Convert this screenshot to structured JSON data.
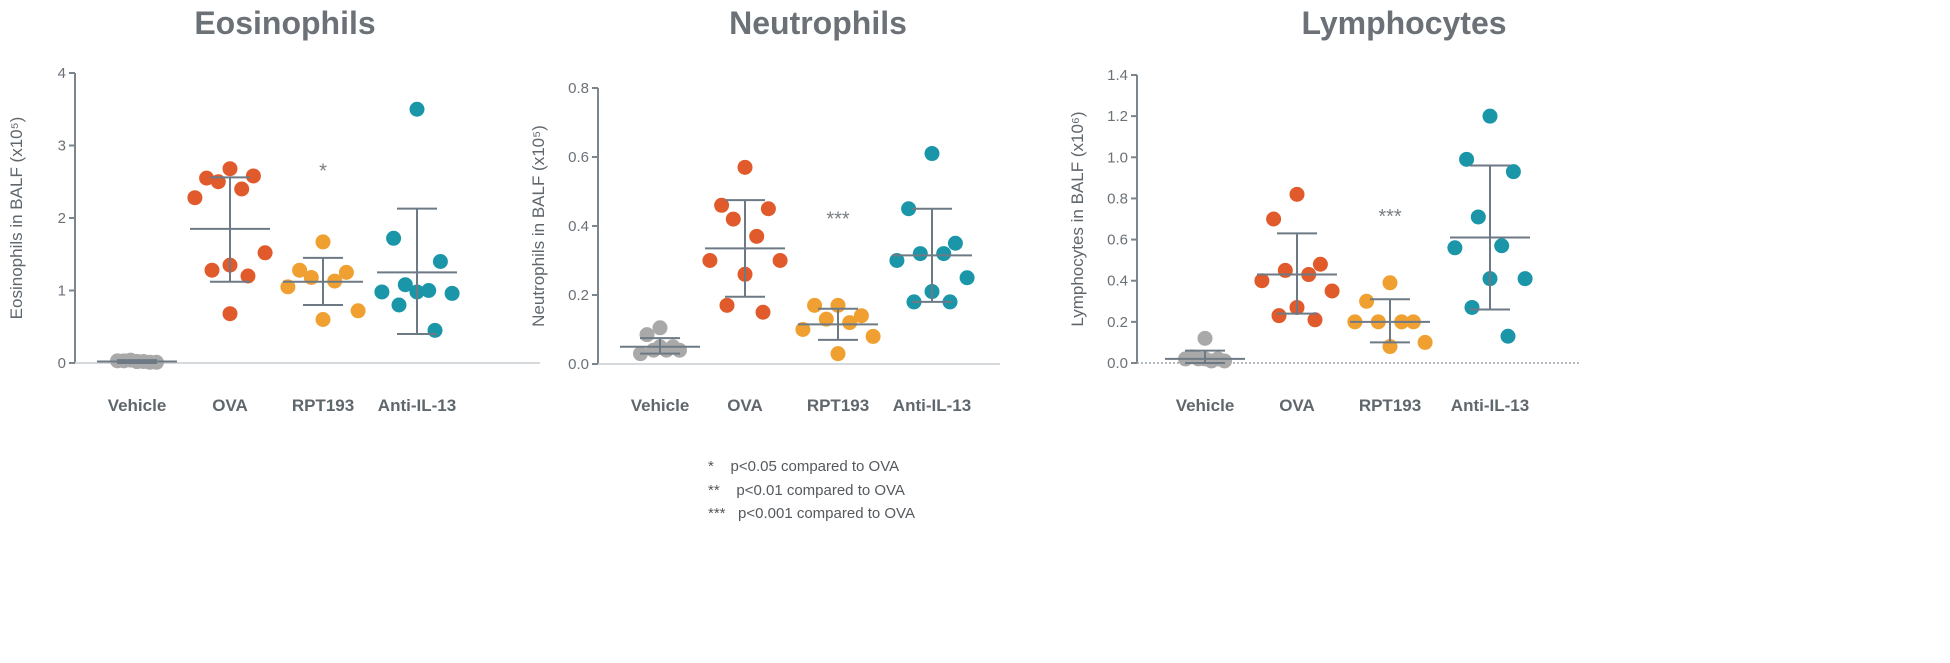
{
  "chart_data": [
    {
      "type": "scatter",
      "title": "Eosinophils",
      "ylabel": "Eosinophils in BALF",
      "yunit": "(x10⁵)",
      "ylim": [
        0,
        4
      ],
      "yticks": [
        "0",
        "1",
        "2",
        "3",
        "4"
      ],
      "ytick_values": [
        0,
        1,
        2,
        3,
        4
      ],
      "categories": [
        "Vehicle",
        "OVA",
        "RPT193",
        "Anti-IL-13"
      ],
      "series": [
        {
          "name": "Vehicle",
          "color": "#a9a9a9",
          "values": [
            0.02,
            0.03,
            0.01,
            0.04,
            0.02,
            0.03,
            0.01,
            0.02
          ],
          "mean": 0.02,
          "err": [
            0.0,
            0.04
          ]
        },
        {
          "name": "OVA",
          "color": "#e05a2b",
          "values": [
            2.68,
            2.55,
            2.58,
            2.5,
            2.4,
            2.28,
            1.52,
            1.35,
            1.28,
            1.2,
            0.68
          ],
          "mean": 1.85,
          "err": [
            1.12,
            2.56
          ]
        },
        {
          "name": "RPT193",
          "color": "#f0a030",
          "values": [
            1.67,
            1.28,
            1.25,
            1.18,
            1.13,
            1.05,
            0.72,
            0.6
          ],
          "mean": 1.12,
          "err": [
            0.8,
            1.45
          ],
          "sig": "*",
          "sig_y": 2.7
        },
        {
          "name": "Anti-IL-13",
          "color": "#1a96a8",
          "values": [
            3.5,
            1.72,
            1.4,
            1.08,
            1.0,
            0.98,
            0.96,
            0.98,
            0.8,
            0.45
          ],
          "mean": 1.25,
          "err": [
            0.4,
            2.13
          ]
        }
      ]
    },
    {
      "type": "scatter",
      "title": "Neutrophils",
      "ylabel": "Neutrophils in BALF",
      "yunit": "(x10⁵)",
      "ylim": [
        0,
        0.8
      ],
      "yticks": [
        "0.0",
        "0.2",
        "0.4",
        "0.6",
        "0.8"
      ],
      "ytick_values": [
        0,
        0.2,
        0.4,
        0.6,
        0.8
      ],
      "categories": [
        "Vehicle",
        "OVA",
        "RPT193",
        "Anti-IL-13"
      ],
      "series": [
        {
          "name": "Vehicle",
          "color": "#a9a9a9",
          "values": [
            0.105,
            0.085,
            0.05,
            0.04,
            0.04,
            0.03,
            0.04,
            0.05
          ],
          "mean": 0.05,
          "err": [
            0.03,
            0.075
          ]
        },
        {
          "name": "OVA",
          "color": "#e05a2b",
          "values": [
            0.57,
            0.46,
            0.45,
            0.42,
            0.37,
            0.3,
            0.3,
            0.26,
            0.17,
            0.15
          ],
          "mean": 0.335,
          "err": [
            0.195,
            0.475
          ]
        },
        {
          "name": "RPT193",
          "color": "#f0a030",
          "values": [
            0.17,
            0.17,
            0.14,
            0.13,
            0.12,
            0.1,
            0.08,
            0.03
          ],
          "mean": 0.115,
          "err": [
            0.07,
            0.16
          ],
          "sig": "***",
          "sig_y": 0.43
        },
        {
          "name": "Anti-IL-13",
          "color": "#1a96a8",
          "values": [
            0.61,
            0.45,
            0.35,
            0.32,
            0.32,
            0.3,
            0.25,
            0.21,
            0.18,
            0.18
          ],
          "mean": 0.315,
          "err": [
            0.18,
            0.45
          ]
        }
      ]
    },
    {
      "type": "scatter",
      "title": "Lymphocytes",
      "ylabel": "Lymphocytes in BALF",
      "yunit": "(x10⁶)",
      "ylim": [
        0,
        1.4
      ],
      "yticks": [
        "0.0",
        "0.2",
        "0.4",
        "0.6",
        "0.8",
        "1.0",
        "1.2",
        "1.4"
      ],
      "ytick_values": [
        0,
        0.2,
        0.4,
        0.6,
        0.8,
        1.0,
        1.2,
        1.4
      ],
      "categories": [
        "Vehicle",
        "OVA",
        "RPT193",
        "Anti-IL-13"
      ],
      "series": [
        {
          "name": "Vehicle",
          "color": "#a9a9a9",
          "values": [
            0.12,
            0.03,
            0.02,
            0.02,
            0.01,
            0.02,
            0.01,
            0.02
          ],
          "mean": 0.02,
          "err": [
            0.0,
            0.06
          ]
        },
        {
          "name": "OVA",
          "color": "#e05a2b",
          "values": [
            0.82,
            0.7,
            0.48,
            0.45,
            0.43,
            0.4,
            0.35,
            0.27,
            0.23,
            0.21
          ],
          "mean": 0.43,
          "err": [
            0.24,
            0.63
          ]
        },
        {
          "name": "RPT193",
          "color": "#f0a030",
          "values": [
            0.39,
            0.3,
            0.2,
            0.2,
            0.2,
            0.2,
            0.1,
            0.08
          ],
          "mean": 0.2,
          "err": [
            0.1,
            0.31
          ],
          "sig": "***",
          "sig_y": 0.73
        },
        {
          "name": "Anti-IL-13",
          "color": "#1a96a8",
          "values": [
            1.2,
            0.99,
            0.93,
            0.71,
            0.57,
            0.56,
            0.41,
            0.41,
            0.27,
            0.13
          ],
          "mean": 0.61,
          "err": [
            0.26,
            0.96
          ]
        }
      ]
    }
  ],
  "footnote": [
    {
      "mark": "*",
      "text": "p<0.05 compared to OVA"
    },
    {
      "mark": "**",
      "text": "p<0.01 compared to OVA"
    },
    {
      "mark": "***",
      "text": "p<0.001 compared to OVA"
    }
  ]
}
